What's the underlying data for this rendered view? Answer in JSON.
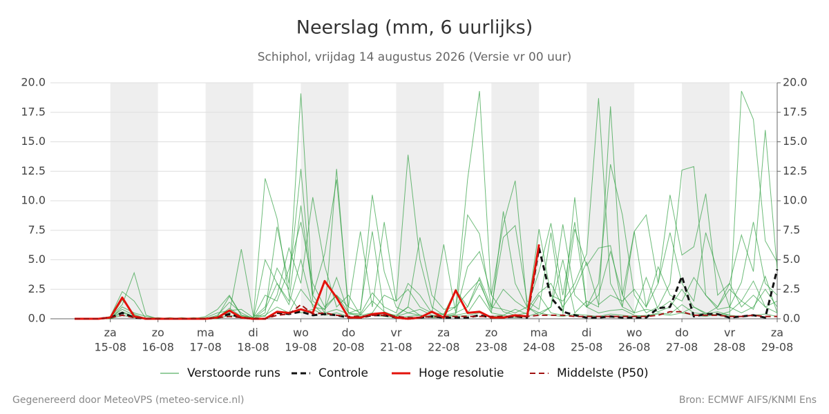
{
  "chart_data": {
    "type": "line",
    "title": "Neerslag (mm, 6 uurlijks)",
    "subtitle": "Schiphol, vrijdag 14 augustus 2026 (Versie vr 00 uur)",
    "weekdays": [
      null,
      null,
      null,
      "za",
      null,
      null,
      null,
      "zo",
      null,
      null,
      null,
      "ma",
      null,
      null,
      null,
      "di",
      null,
      null,
      null,
      "wo",
      null,
      null,
      null,
      "do",
      null,
      null,
      null,
      "vr",
      null,
      null,
      null,
      "za",
      null,
      null,
      null,
      "zo",
      null,
      null,
      null,
      "ma",
      null,
      null,
      null,
      "di",
      null,
      null,
      null,
      "wo",
      null,
      null,
      null,
      "do",
      null,
      null,
      null,
      "vr",
      null,
      null,
      null,
      "za"
    ],
    "categories": [
      null,
      null,
      null,
      "15-08",
      null,
      null,
      null,
      "16-08",
      null,
      null,
      null,
      "17-08",
      null,
      null,
      null,
      "18-08",
      null,
      null,
      null,
      "19-08",
      null,
      null,
      null,
      "20-08",
      null,
      null,
      null,
      "21-08",
      null,
      null,
      null,
      "22-08",
      null,
      null,
      null,
      "23-08",
      null,
      null,
      null,
      "24-08",
      null,
      null,
      null,
      "25-08",
      null,
      null,
      null,
      "26-08",
      null,
      null,
      null,
      "27-08",
      null,
      null,
      null,
      "28-08",
      null,
      null,
      null,
      "29-08"
    ],
    "ylim": [
      0,
      20
    ],
    "yticks": [
      {
        "value": 0,
        "label": "0.0"
      },
      {
        "value": 2.5,
        "label": "2.5"
      },
      {
        "value": 5,
        "label": "5.0"
      },
      {
        "value": 7.5,
        "label": "7.5"
      },
      {
        "value": 10,
        "label": "10.0"
      },
      {
        "value": 12.5,
        "label": "12.5"
      },
      {
        "value": 15,
        "label": "15.0"
      },
      {
        "value": 17.5,
        "label": "17.5"
      },
      {
        "value": 20,
        "label": "20.0"
      }
    ],
    "y2lim": [
      0,
      20
    ],
    "y2ticks": [
      {
        "value": 0,
        "label": "0.0"
      },
      {
        "value": 2.5,
        "label": "2.5"
      },
      {
        "value": 5,
        "label": "5.0"
      },
      {
        "value": 7.5,
        "label": "7.5"
      },
      {
        "value": 10,
        "label": "10.0"
      },
      {
        "value": 12.5,
        "label": "12.5"
      },
      {
        "value": 15,
        "label": "15.0"
      },
      {
        "value": 17.5,
        "label": "17.5"
      },
      {
        "value": 20,
        "label": "20.0"
      }
    ],
    "grid": true,
    "ensemble": {
      "name": "Verstoorde runs",
      "color": "#2e9e3e",
      "runs": [
        [
          0,
          0,
          0,
          0.2,
          2.3,
          1.5,
          0,
          0,
          0,
          0.1,
          0,
          0,
          0.3,
          1.4,
          0.5,
          0,
          11.9,
          8.5,
          2.0,
          0.5,
          0.8,
          0.3,
          12.7,
          0.5,
          0.2,
          0.4,
          0.3,
          0.2,
          1.0,
          0.3,
          0.1,
          0.2,
          0.3,
          0.5,
          2.0,
          0.5,
          0.3,
          0.8,
          0.4,
          2.0,
          0.5,
          0.3,
          10.3,
          1.0,
          0.5,
          0.7,
          0.8,
          0.3,
          0.2,
          0.5,
          0.4,
          1.2,
          0.5,
          0.4,
          0.6,
          0.3,
          19.3,
          16.9,
          6.6,
          4.8
        ],
        [
          0,
          0,
          0,
          0.1,
          1.2,
          3.9,
          0.3,
          0,
          0,
          0,
          0,
          0.2,
          0.8,
          2.0,
          0.3,
          0.1,
          1.0,
          4.3,
          2.5,
          19.1,
          2.0,
          0.5,
          0.8,
          0.4,
          0.3,
          1.5,
          0.6,
          0.2,
          0.5,
          0.3,
          0.2,
          0.4,
          1.0,
          11.8,
          19.3,
          2.0,
          0.6,
          0.3,
          0.5,
          7.6,
          2.0,
          1.5,
          3.0,
          5.5,
          18.7,
          3.0,
          1.0,
          0.5,
          0.8,
          0.6,
          1.0,
          2.5,
          1.0,
          0.5,
          0.3,
          0.6,
          1.5,
          0.8,
          3.6,
          0.5
        ],
        [
          0,
          0,
          0,
          0,
          1.0,
          0.5,
          0.2,
          0,
          0,
          0,
          0.1,
          0,
          0.2,
          0.5,
          5.9,
          0.3,
          0.2,
          2.0,
          6.0,
          3.0,
          10.3,
          4.5,
          1.0,
          2.0,
          0.3,
          0.5,
          2.0,
          1.5,
          13.9,
          5.0,
          1.0,
          0.3,
          0.5,
          1.0,
          3.5,
          1.0,
          0.8,
          0.5,
          1.0,
          0.3,
          1.0,
          5.0,
          0.5,
          1.5,
          1.0,
          18.0,
          2.0,
          0.5,
          3.5,
          0.8,
          1.5,
          0.5,
          1.0,
          0.4,
          1.0,
          3.0,
          1.0,
          2.0,
          1.0,
          0.5
        ],
        [
          0,
          0,
          0,
          0.1,
          0.8,
          0.3,
          0,
          0,
          0.1,
          0,
          0,
          0,
          0.1,
          0.9,
          0.2,
          0,
          0.5,
          7.8,
          3.0,
          12.7,
          1.5,
          0.8,
          2.0,
          1.0,
          0.5,
          10.5,
          4.0,
          1.0,
          0.5,
          0.8,
          0.3,
          0.2,
          0.4,
          4.4,
          5.7,
          2.0,
          8.0,
          11.7,
          1.0,
          0.5,
          1.0,
          8.0,
          2.0,
          1.0,
          3.0,
          13.1,
          8.8,
          2.0,
          0.5,
          1.0,
          3.0,
          12.6,
          12.9,
          2.0,
          0.8,
          1.0,
          0.5,
          1.0,
          2.5,
          1.0
        ],
        [
          0,
          0,
          0,
          0,
          0.5,
          0.2,
          0,
          0.1,
          0,
          0,
          0,
          0,
          0.2,
          1.9,
          0.3,
          0,
          5.0,
          3.0,
          1.5,
          9.6,
          2.0,
          5.5,
          11.8,
          1.0,
          7.4,
          1.0,
          8.2,
          1.5,
          2.5,
          1.0,
          0.5,
          6.3,
          0.5,
          8.8,
          7.2,
          1.0,
          6.9,
          7.9,
          1.5,
          0.8,
          7.3,
          0.5,
          7.6,
          4.5,
          6.0,
          6.2,
          1.0,
          7.4,
          8.8,
          3.0,
          10.5,
          5.4,
          6.1,
          10.6,
          2.0,
          3.0,
          7.1,
          4.0,
          16.0,
          4.2
        ],
        [
          0,
          0,
          0,
          0,
          1.6,
          0.4,
          0,
          0,
          0,
          0,
          0,
          0.1,
          0.5,
          0.7,
          0.8,
          0.1,
          2.0,
          1.5,
          4.2,
          8.2,
          3.0,
          1.0,
          2.0,
          0.5,
          0.8,
          7.4,
          0.5,
          0.3,
          1.0,
          6.9,
          2.0,
          0.8,
          1.0,
          2.2,
          3.3,
          0.5,
          9.1,
          3.0,
          1.0,
          4.0,
          8.1,
          2.0,
          8.2,
          1.0,
          2.0,
          5.7,
          2.0,
          7.4,
          1.0,
          3.0,
          7.3,
          3.0,
          1.5,
          7.3,
          4.0,
          1.0,
          3.1,
          8.2,
          3.0,
          2.0
        ],
        [
          0,
          0,
          0,
          0,
          0.3,
          0.1,
          0,
          0,
          0,
          0,
          0,
          0,
          0,
          0.3,
          0.1,
          0,
          0.3,
          1.0,
          0.5,
          2.5,
          1.2,
          0.3,
          0.5,
          0.2,
          0.1,
          0.3,
          0.2,
          0.1,
          0.2,
          0.3,
          0.1,
          0.1,
          0.2,
          0.3,
          0.5,
          0.2,
          0.3,
          0.1,
          0.2,
          0.5,
          0.3,
          0.2,
          0.4,
          0.3,
          0.2,
          0.4,
          0.3,
          0.2,
          0.3,
          0.4,
          0.3,
          0.5,
          0.3,
          0.2,
          0.4,
          0.3,
          0.2,
          0.3,
          0.4,
          0.2
        ],
        [
          0,
          0,
          0,
          0.1,
          0.6,
          0.2,
          0,
          0,
          0,
          0,
          0,
          0,
          0.2,
          0.6,
          0.2,
          0,
          0.8,
          3.0,
          1.2,
          5.0,
          1.0,
          0.8,
          3.5,
          0.5,
          0.4,
          2.2,
          1.0,
          0.5,
          3.0,
          2.0,
          0.5,
          0.4,
          2.5,
          1.0,
          3.0,
          0.8,
          2.5,
          1.5,
          0.8,
          2.2,
          3.0,
          1.0,
          2.5,
          4.8,
          1.2,
          2.0,
          1.5,
          2.5,
          1.0,
          4.4,
          2.0,
          1.5,
          3.5,
          2.0,
          1.0,
          2.5,
          1.5,
          3.2,
          1.0,
          1.5
        ]
      ]
    },
    "series": [
      {
        "name": "Controle",
        "color": "#111111",
        "dash": true,
        "width": 3,
        "values": [
          0,
          0,
          0,
          0.1,
          0.5,
          0.1,
          0,
          0,
          0,
          0,
          0,
          0,
          0.1,
          0.4,
          0.1,
          0,
          0,
          0.5,
          0.4,
          0.6,
          0.3,
          0.4,
          0.3,
          0.1,
          0.1,
          0.3,
          0.3,
          0.1,
          0,
          0.1,
          0.2,
          0.1,
          0.1,
          0.1,
          0.3,
          0.1,
          0.1,
          0.2,
          0.1,
          6.0,
          1.8,
          0.6,
          0.3,
          0.1,
          0.1,
          0.2,
          0.1,
          0.1,
          0.1,
          0.9,
          1.0,
          3.6,
          0.2,
          0.4,
          0.4,
          0.1,
          0.2,
          0.3,
          0.1,
          4.2
        ]
      },
      {
        "name": "Hoge resolutie",
        "color": "#e3120b",
        "dash": false,
        "width": 3,
        "values": [
          0,
          0,
          0,
          0.1,
          1.8,
          0.2,
          0,
          0,
          0,
          0,
          0,
          0,
          0.1,
          0.7,
          0.1,
          0,
          0,
          0.6,
          0.5,
          0.8,
          0.5,
          3.2,
          1.8,
          0.1,
          0.1,
          0.4,
          0.5,
          0.1,
          0,
          0.1,
          0.6,
          0.1,
          2.4,
          0.5,
          0.6,
          0.1,
          0.1,
          0.3,
          0.2,
          6.3,
          null,
          null,
          null,
          null,
          null,
          null,
          null,
          null,
          null,
          null,
          null,
          null,
          null,
          null,
          null,
          null,
          null,
          null,
          null,
          null
        ]
      },
      {
        "name": "Middelste (P50)",
        "color": "#a01010",
        "dash": true,
        "width": 2,
        "values": [
          0,
          0,
          0,
          0.1,
          0.3,
          0.1,
          0,
          0,
          0,
          0,
          0,
          0,
          0.1,
          0.2,
          0.1,
          0,
          0,
          0.3,
          0.4,
          1.2,
          0.4,
          0.5,
          0.3,
          0.2,
          0.2,
          0.3,
          0.3,
          0.2,
          0.1,
          0.1,
          0.2,
          0.2,
          0.2,
          0.2,
          0.2,
          0.2,
          0.2,
          0.2,
          0.2,
          0.3,
          0.3,
          0.3,
          0.2,
          0.2,
          0.2,
          0.2,
          0.2,
          0.2,
          0.2,
          0.3,
          0.6,
          0.6,
          0.3,
          0.3,
          0.3,
          0.2,
          0.2,
          0.3,
          0.2,
          0.2
        ]
      }
    ],
    "footer_left": "Gegenereerd door MeteoVPS (meteo-service.nl)",
    "footer_right": "Bron: ECMWF AIFS/KNMI Ens"
  }
}
